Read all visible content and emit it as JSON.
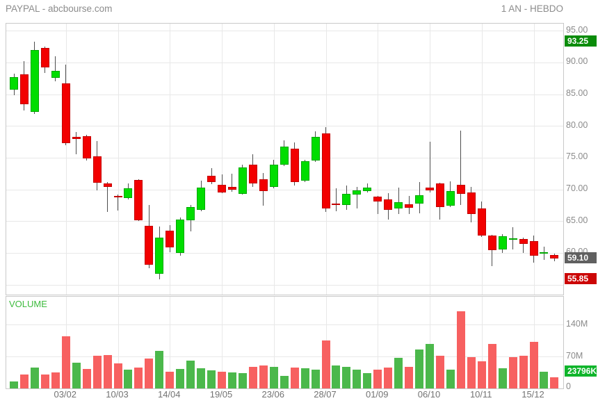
{
  "header": {
    "title": "PAYPAL - abcbourse.com",
    "timeframe": "1 AN - HEBDO"
  },
  "volume_title": "VOLUME",
  "price_axis": {
    "tick_labels": [
      "95.00",
      "90.00",
      "85.00",
      "80.00",
      "75.00",
      "70.00",
      "65.00",
      "60.00"
    ],
    "tick_values": [
      95,
      90,
      85,
      80,
      75,
      70,
      65,
      60
    ],
    "badges": [
      {
        "name": "period-high-badge",
        "label": "93.25",
        "value": 93.25,
        "bg": "#0a8c0a"
      },
      {
        "name": "last-price-badge",
        "label": "59.10",
        "value": 59.1,
        "bg": "#606060"
      },
      {
        "name": "period-low-badge",
        "label": "55.85",
        "value": 55.85,
        "bg": "#cc0606"
      }
    ]
  },
  "volume_axis": {
    "ticks": [
      {
        "label": "140M",
        "value": 140
      },
      {
        "label": "70M",
        "value": 70
      },
      {
        "label": "0",
        "value": 0
      }
    ],
    "badge": {
      "label": "23796K",
      "value_millions": 23.8,
      "bg": "#0fb52b"
    }
  },
  "colors": {
    "candle_up": "#00dd00",
    "candle_down": "#f20000",
    "wick": "#4d4d4d",
    "vol_up": "#4bb84b",
    "vol_down": "#f76060",
    "grid": "#e8e8e8",
    "panel_border": "#c9c9c9",
    "axis_text": "#8a8a8a",
    "header_text": "#8c8c8c",
    "volume_label": "#3dbb3d",
    "date_text": "#737373"
  },
  "chart_data": [
    {
      "type": "candlestick",
      "title": "PAYPAL - abcbourse.com",
      "timeframe": "1 AN - HEBDO",
      "ylim": [
        54,
        96.5
      ],
      "grid_prices": [
        95,
        90,
        85,
        80,
        75,
        70,
        65,
        60,
        55
      ],
      "x_ticks": [
        {
          "index": 5,
          "label": "03/02"
        },
        {
          "index": 10,
          "label": "10/03"
        },
        {
          "index": 15,
          "label": "14/04"
        },
        {
          "index": 20,
          "label": "19/05"
        },
        {
          "index": 25,
          "label": "23/06"
        },
        {
          "index": 30,
          "label": "28/07"
        },
        {
          "index": 35,
          "label": "01/09"
        },
        {
          "index": 40,
          "label": "06/10"
        },
        {
          "index": 45,
          "label": "10/11"
        },
        {
          "index": 50,
          "label": "15/12"
        }
      ],
      "ohlc": [
        [
          85.7,
          88.2,
          84.8,
          87.7
        ],
        [
          88.1,
          90.2,
          82.4,
          83.4
        ],
        [
          82.2,
          93.25,
          81.9,
          92.0
        ],
        [
          92.3,
          92.5,
          88.4,
          89.2
        ],
        [
          87.6,
          91.0,
          87.0,
          88.7
        ],
        [
          86.7,
          89.7,
          77.0,
          77.3
        ],
        [
          78.3,
          79.0,
          75.5,
          77.9
        ],
        [
          78.4,
          78.6,
          74.6,
          74.9
        ],
        [
          75.2,
          77.6,
          69.8,
          71.1
        ],
        [
          70.9,
          71.2,
          66.4,
          70.4
        ],
        [
          69.0,
          69.2,
          66.7,
          68.9
        ],
        [
          68.6,
          70.9,
          68.4,
          70.2
        ],
        [
          71.5,
          71.6,
          65.0,
          65.1
        ],
        [
          64.3,
          67.6,
          57.6,
          58.1
        ],
        [
          56.7,
          64.1,
          55.85,
          62.4
        ],
        [
          63.5,
          64.4,
          60.1,
          60.9
        ],
        [
          60.0,
          65.6,
          59.6,
          65.2
        ],
        [
          65.1,
          67.5,
          63.4,
          67.2
        ],
        [
          66.8,
          71.4,
          66.6,
          70.3
        ],
        [
          72.1,
          73.3,
          70.8,
          71.2
        ],
        [
          70.7,
          72.4,
          69.4,
          69.5
        ],
        [
          70.4,
          72.5,
          69.6,
          70.0
        ],
        [
          69.3,
          73.9,
          69.2,
          73.5
        ],
        [
          73.9,
          75.5,
          70.4,
          70.9
        ],
        [
          71.6,
          72.6,
          67.4,
          69.7
        ],
        [
          70.4,
          74.7,
          70.2,
          73.9
        ],
        [
          73.9,
          77.7,
          73.7,
          76.8
        ],
        [
          76.4,
          77.4,
          70.6,
          71.2
        ],
        [
          71.4,
          74.7,
          71.2,
          74.4
        ],
        [
          74.5,
          79.1,
          74.3,
          78.3
        ],
        [
          78.8,
          79.8,
          66.5,
          67.0
        ],
        [
          67.8,
          70.2,
          66.6,
          67.6
        ],
        [
          67.5,
          70.6,
          66.8,
          69.3
        ],
        [
          69.2,
          70.4,
          67.0,
          69.9
        ],
        [
          69.7,
          70.9,
          69.5,
          70.3
        ],
        [
          68.9,
          69.0,
          66.1,
          68.1
        ],
        [
          68.4,
          69.4,
          65.3,
          66.8
        ],
        [
          67.0,
          70.3,
          66.1,
          68.0
        ],
        [
          67.7,
          69.0,
          66.1,
          67.1
        ],
        [
          67.8,
          71.2,
          66.2,
          69.1
        ],
        [
          70.3,
          77.5,
          69.5,
          69.8
        ],
        [
          70.9,
          71.0,
          65.3,
          67.2
        ],
        [
          67.4,
          71.3,
          67.2,
          69.7
        ],
        [
          70.7,
          79.3,
          67.6,
          69.3
        ],
        [
          69.5,
          70.4,
          64.8,
          66.1
        ],
        [
          67.0,
          68.1,
          62.5,
          62.7
        ],
        [
          62.7,
          62.8,
          57.9,
          60.4
        ],
        [
          60.5,
          62.9,
          60.0,
          62.6
        ],
        [
          62.1,
          64.0,
          60.5,
          62.3
        ],
        [
          62.2,
          62.4,
          60.0,
          61.4
        ],
        [
          61.8,
          62.7,
          58.5,
          59.6
        ],
        [
          60.0,
          61.0,
          58.9,
          60.1
        ],
        [
          59.7,
          59.9,
          58.7,
          59.1
        ]
      ]
    },
    {
      "type": "bar",
      "title": "VOLUME",
      "unit": "millions",
      "ylim": [
        0,
        200
      ],
      "grid_values": [
        70,
        140
      ],
      "values": [
        16,
        30,
        46,
        31,
        35,
        115,
        56,
        42,
        71,
        74,
        55,
        41,
        46,
        66,
        82,
        36,
        43,
        61,
        45,
        40,
        36,
        35,
        33,
        47,
        51,
        47,
        28,
        46,
        45,
        41,
        106,
        51,
        47,
        41,
        33,
        41,
        46,
        67,
        48,
        86,
        98,
        71,
        41,
        170,
        69,
        60,
        98,
        45,
        69,
        71,
        102,
        36,
        23.8
      ],
      "bar_colors": [
        "g",
        "r",
        "g",
        "r",
        "r",
        "r",
        "g",
        "r",
        "r",
        "r",
        "r",
        "g",
        "r",
        "r",
        "g",
        "r",
        "g",
        "g",
        "g",
        "g",
        "r",
        "g",
        "g",
        "r",
        "r",
        "g",
        "g",
        "r",
        "g",
        "g",
        "r",
        "g",
        "g",
        "g",
        "g",
        "r",
        "r",
        "g",
        "r",
        "g",
        "g",
        "r",
        "g",
        "r",
        "r",
        "r",
        "r",
        "g",
        "r",
        "r",
        "r",
        "g",
        "r"
      ]
    }
  ]
}
